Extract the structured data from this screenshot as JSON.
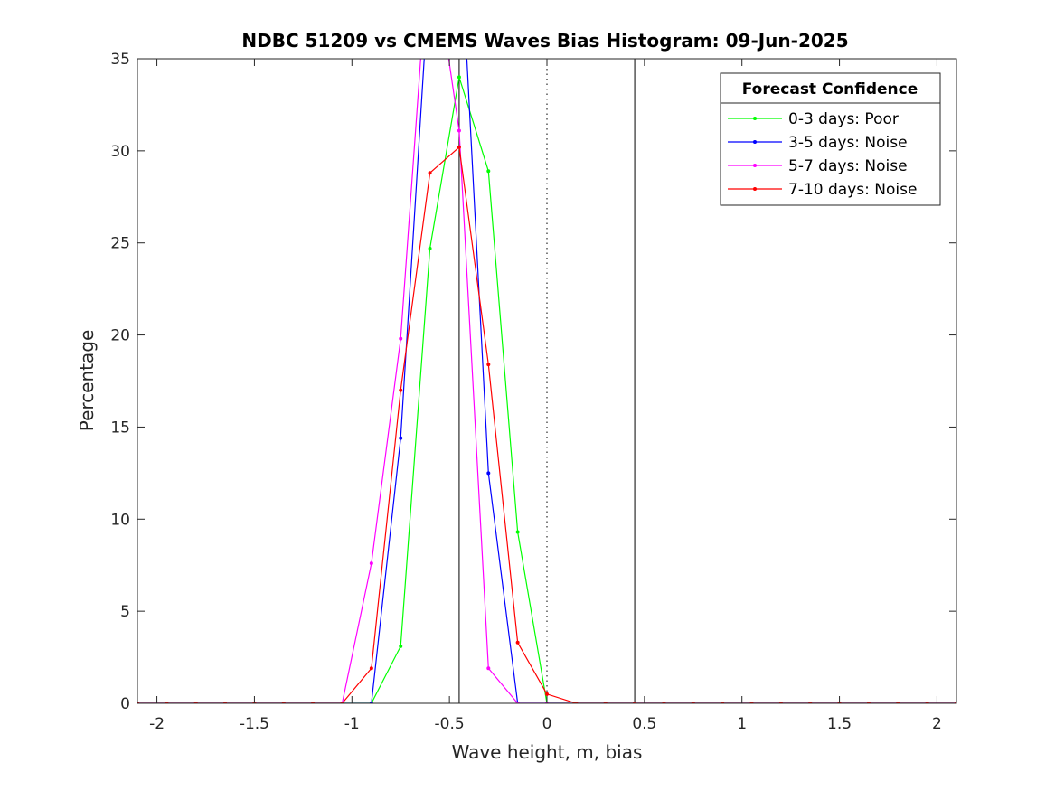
{
  "chart_data": {
    "type": "line",
    "title": "NDBC 51209 vs CMEMS Waves Bias Histogram: 09-Jun-2025",
    "xlabel": "Wave height, m, bias",
    "ylabel": "Percentage",
    "xlim": [
      -2.1,
      2.1
    ],
    "ylim": [
      0,
      35
    ],
    "xticks": [
      -2,
      -1.5,
      -1,
      -0.5,
      0,
      0.5,
      1,
      1.5,
      2
    ],
    "xtick_labels": [
      "-2",
      "-1.5",
      "-1",
      "-0.5",
      "0",
      "0.5",
      "1",
      "1.5",
      "2"
    ],
    "yticks": [
      0,
      5,
      10,
      15,
      20,
      25,
      30,
      35
    ],
    "ytick_labels": [
      "0",
      "5",
      "10",
      "15",
      "20",
      "25",
      "30",
      "35"
    ],
    "grid": false,
    "legend": {
      "title": "Forecast Confidence",
      "placement": "top-right"
    },
    "reference_lines": [
      {
        "x": -0.45,
        "style": "solid",
        "color": "#000000"
      },
      {
        "x": 0,
        "style": "dotted",
        "color": "#000000"
      },
      {
        "x": 0.45,
        "style": "solid",
        "color": "#000000"
      }
    ],
    "x": [
      -2.1,
      -1.95,
      -1.8,
      -1.65,
      -1.5,
      -1.35,
      -1.2,
      -1.05,
      -0.9,
      -0.75,
      -0.6,
      -0.45,
      -0.3,
      -0.15,
      0,
      0.15,
      0.3,
      0.45,
      0.6,
      0.75,
      0.9,
      1.05,
      1.2,
      1.35,
      1.5,
      1.65,
      1.8,
      1.95,
      2.1
    ],
    "series": [
      {
        "name": "0-3 days: Poor",
        "color": "#00ff00",
        "values": [
          0,
          0,
          0,
          0,
          0,
          0,
          0,
          0,
          0,
          3.1,
          24.7,
          34.0,
          28.9,
          9.3,
          0,
          0,
          0,
          0,
          0,
          0,
          0,
          0,
          0,
          0,
          0,
          0,
          0,
          0,
          0
        ]
      },
      {
        "name": "3-5 days: Noise",
        "color": "#0000ff",
        "values": [
          0,
          0,
          0,
          0,
          0,
          0,
          0,
          0,
          0,
          14.4,
          40.0,
          43.0,
          12.5,
          0,
          0,
          0,
          0,
          0,
          0,
          0,
          0,
          0,
          0,
          0,
          0,
          0,
          0,
          0,
          0
        ]
      },
      {
        "name": "5-7 days: Noise",
        "color": "#ff00ff",
        "values": [
          0,
          0,
          0,
          0,
          0,
          0,
          0,
          0,
          7.6,
          19.8,
          42.0,
          31.1,
          1.9,
          0,
          0,
          0,
          0,
          0,
          0,
          0,
          0,
          0,
          0,
          0,
          0,
          0,
          0,
          0,
          0
        ]
      },
      {
        "name": "7-10 days: Noise",
        "color": "#ff0000",
        "values": [
          0,
          0,
          0,
          0,
          0,
          0,
          0,
          0,
          1.9,
          17.0,
          28.8,
          30.2,
          18.4,
          3.3,
          0.5,
          0,
          0,
          0,
          0,
          0,
          0,
          0,
          0,
          0,
          0,
          0,
          0,
          0,
          0
        ]
      }
    ]
  }
}
